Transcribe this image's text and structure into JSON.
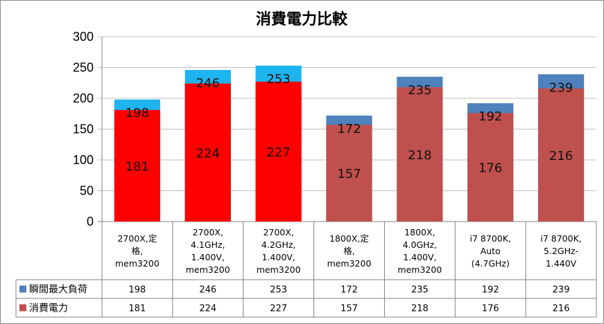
{
  "chart_data": {
    "type": "bar",
    "stacked_overlay": true,
    "title": "消費電力比較",
    "xlabel": "",
    "ylabel": "",
    "ylim": [
      0,
      300
    ],
    "yticks": [
      0,
      50,
      100,
      150,
      200,
      250,
      300
    ],
    "grid": true,
    "legend": "data-table-left",
    "categories": [
      [
        "2700X,定",
        "格,",
        "mem3200"
      ],
      [
        "2700X,",
        "4.1GHz,",
        "1.400V,",
        "mem3200"
      ],
      [
        "2700X,",
        "4.2GHz,",
        "1.400V,",
        "mem3200"
      ],
      [
        "1800X,定",
        "格,",
        "mem3200"
      ],
      [
        "1800X,",
        "4.0GHz,",
        "1.400V,",
        "mem3200"
      ],
      [
        "i7 8700K,",
        "Auto",
        "(4.7GHz)"
      ],
      [
        "i7 8700K,",
        "5.2GHz-",
        "1.440V"
      ]
    ],
    "series": [
      {
        "name": "瞬間最大負荷",
        "values": [
          198,
          246,
          253,
          172,
          235,
          192,
          239
        ],
        "colors": [
          "#1eb4f0",
          "#1eb4f0",
          "#1eb4f0",
          "#4f81bd",
          "#4f81bd",
          "#4f81bd",
          "#4f81bd"
        ],
        "legend_color": "#4f81bd"
      },
      {
        "name": "消費電力",
        "values": [
          181,
          224,
          227,
          157,
          218,
          176,
          216
        ],
        "colors": [
          "#ff0000",
          "#ff0000",
          "#ff0000",
          "#c0504d",
          "#c0504d",
          "#c0504d",
          "#c0504d"
        ],
        "legend_color": "#c0504d"
      }
    ]
  }
}
